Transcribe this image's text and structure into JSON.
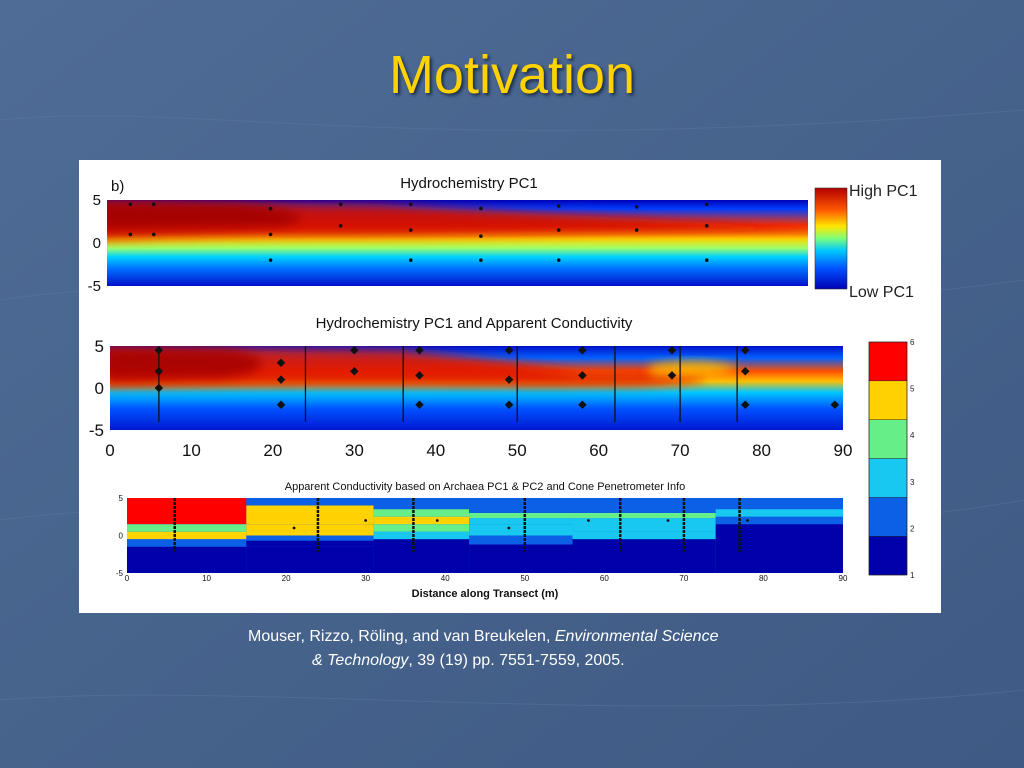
{
  "slide": {
    "title": "Motivation"
  },
  "citation": {
    "authors": "Mouser, Rizzo, Röling, and van Breukelen, ",
    "journal_a": "Environmental Science",
    "journal_b": "& Technology",
    "details": ", 39 (19) pp. 7551-7559, 2005."
  },
  "colors": {
    "slide_bg": "#47648e",
    "title": "#ffd200",
    "high": "#b30000",
    "low": "#0000b4",
    "conductivity_classes": [
      "#0000aa",
      "#0b60e6",
      "#19c8f0",
      "#66ee88",
      "#ffd200",
      "#ff0000"
    ]
  },
  "chart_data": [
    {
      "type": "heatmap",
      "panel_label": "b)",
      "title": "Hydrochemistry PC1",
      "xlabel": "",
      "ylabel": "",
      "y_ticks": [
        "5",
        "0",
        "-5"
      ],
      "ylim": [
        -5,
        5
      ],
      "xlim": [
        0,
        90
      ],
      "colorbar_labels": {
        "high": "High PC1",
        "low": "Low PC1"
      },
      "description_points": [
        [
          3,
          4.5
        ],
        [
          3,
          1
        ],
        [
          6,
          4.5
        ],
        [
          6,
          1
        ],
        [
          21,
          4
        ],
        [
          21,
          1
        ],
        [
          21,
          -2
        ],
        [
          30,
          4.5
        ],
        [
          30,
          2
        ],
        [
          39,
          4.5
        ],
        [
          39,
          1.5
        ],
        [
          39,
          -2
        ],
        [
          48,
          4
        ],
        [
          48,
          0.8
        ],
        [
          48,
          -2
        ],
        [
          58,
          4.3
        ],
        [
          58,
          1.5
        ],
        [
          58,
          -2
        ],
        [
          68,
          4.2
        ],
        [
          68,
          1.5
        ],
        [
          77,
          4.5
        ],
        [
          77,
          2
        ],
        [
          77,
          -2
        ]
      ]
    },
    {
      "type": "heatmap",
      "title": "Hydrochemistry PC1 and Apparent Conductivity",
      "x_ticks": [
        "0",
        "10",
        "20",
        "30",
        "40",
        "50",
        "60",
        "70",
        "80",
        "90"
      ],
      "y_ticks": [
        "5",
        "0",
        "-5"
      ],
      "xlim": [
        0,
        90
      ],
      "ylim": [
        -5,
        5
      ],
      "cpt_lines_x": [
        6,
        24,
        36,
        50,
        62,
        70,
        77
      ],
      "points": [
        [
          6,
          4.5
        ],
        [
          6,
          2
        ],
        [
          6,
          0
        ],
        [
          21,
          3
        ],
        [
          21,
          1
        ],
        [
          21,
          -2
        ],
        [
          30,
          4.5
        ],
        [
          30,
          2
        ],
        [
          38,
          4.5
        ],
        [
          38,
          1.5
        ],
        [
          38,
          -2
        ],
        [
          49,
          4.5
        ],
        [
          49,
          1
        ],
        [
          49,
          -2
        ],
        [
          58,
          4.5
        ],
        [
          58,
          1.5
        ],
        [
          58,
          -2
        ],
        [
          69,
          4.5
        ],
        [
          69,
          1.5
        ],
        [
          78,
          4.5
        ],
        [
          78,
          2
        ],
        [
          78,
          -2
        ],
        [
          89,
          -2
        ]
      ],
      "colorbar": {
        "ticks": [
          "1",
          "2",
          "3",
          "4",
          "5",
          "6"
        ]
      }
    },
    {
      "type": "heatmap",
      "title": "Apparent Conductivity based on Archaea PC1 & PC2 and Cone Penetrometer Info",
      "xlabel": "Distance along Transect (m)",
      "x_ticks": [
        "0",
        "10",
        "20",
        "30",
        "40",
        "50",
        "60",
        "70",
        "80",
        "90"
      ],
      "y_ticks": [
        "5",
        "0",
        "-5"
      ],
      "xlim": [
        0,
        90
      ],
      "ylim": [
        -5,
        5
      ],
      "cpt_lines_x": [
        6,
        24,
        36,
        50,
        62,
        70,
        77
      ],
      "points": [
        [
          21,
          1
        ],
        [
          30,
          2
        ],
        [
          39,
          2
        ],
        [
          48,
          1
        ],
        [
          58,
          2
        ],
        [
          68,
          2
        ],
        [
          78,
          2
        ]
      ]
    }
  ]
}
